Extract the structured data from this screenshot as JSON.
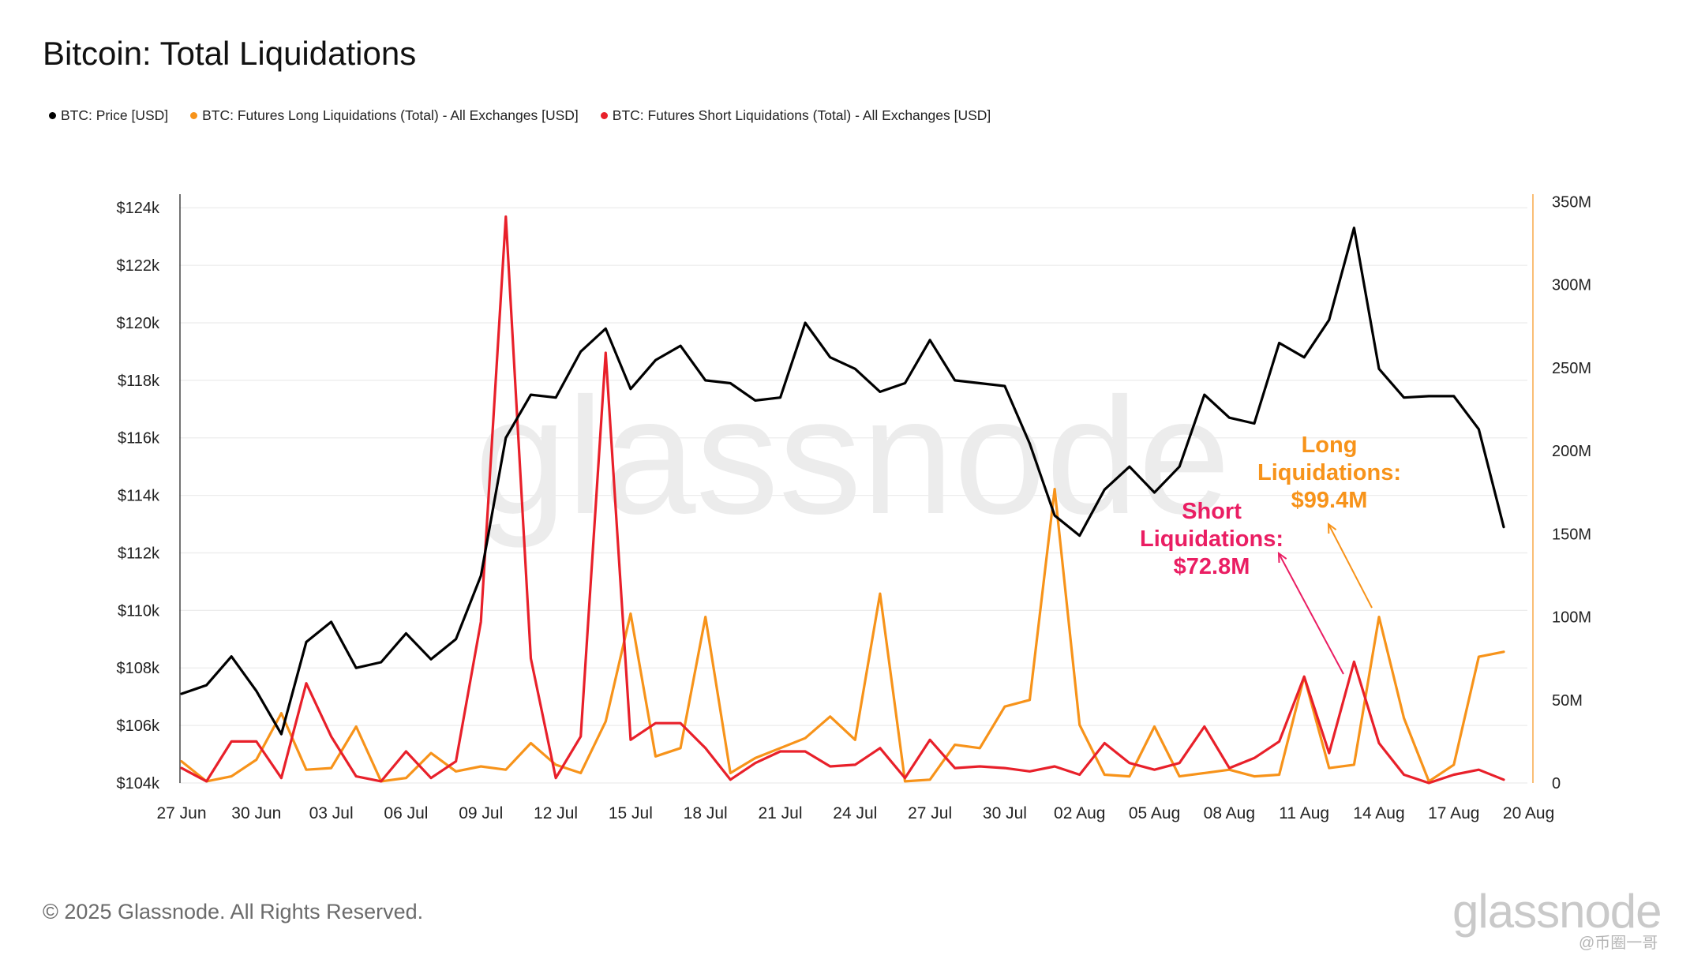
{
  "title": "Bitcoin: Total Liquidations",
  "legend": [
    {
      "label": "BTC: Price [USD]",
      "color": "#000000"
    },
    {
      "label": "BTC: Futures Long Liquidations (Total) - All Exchanges [USD]",
      "color": "#f7931a"
    },
    {
      "label": "BTC: Futures Short Liquidations (Total) - All Exchanges [USD]",
      "color": "#e8202a"
    }
  ],
  "footer": "© 2025 Glassnode. All Rights Reserved.",
  "logo": "glassnode",
  "watermark_corner": "@币圈一哥",
  "chart_data": {
    "type": "line",
    "title": "Bitcoin: Total Liquidations",
    "x_tick_labels": [
      "27 Jun",
      "30 Jun",
      "03 Jul",
      "06 Jul",
      "09 Jul",
      "12 Jul",
      "15 Jul",
      "18 Jul",
      "21 Jul",
      "24 Jul",
      "27 Jul",
      "30 Jul",
      "02 Aug",
      "05 Aug",
      "08 Aug",
      "11 Aug",
      "14 Aug",
      "17 Aug",
      "20 Aug"
    ],
    "x_range": [
      "2025-06-27",
      "2025-08-20"
    ],
    "y_left": {
      "ticks": [
        "$104k",
        "$106k",
        "$108k",
        "$110k",
        "$112k",
        "$114k",
        "$116k",
        "$118k",
        "$120k",
        "$122k",
        "$124k"
      ],
      "range": [
        104000,
        124500
      ]
    },
    "y_right": {
      "ticks": [
        "0",
        "50M",
        "100M",
        "150M",
        "200M",
        "250M",
        "300M",
        "350M"
      ],
      "range": [
        0,
        355
      ]
    },
    "grid": "horizontal",
    "legend_position": "top-left",
    "series": [
      {
        "name": "BTC: Price [USD]",
        "axis": "left",
        "color": "#000000",
        "values": [
          107100,
          107400,
          108400,
          107200,
          105700,
          108900,
          109600,
          108000,
          108200,
          109200,
          108300,
          109000,
          111200,
          116000,
          117500,
          117400,
          119000,
          119800,
          117700,
          118700,
          119200,
          118000,
          117900,
          117300,
          117400,
          120000,
          118800,
          118400,
          117600,
          117900,
          119400,
          118000,
          117900,
          117800,
          115800,
          113300,
          112600,
          114200,
          115000,
          114100,
          115000,
          117500,
          116700,
          116500,
          119300,
          118800,
          120100,
          123300,
          118400,
          117400,
          117450,
          117450,
          116300,
          112900
        ]
      },
      {
        "name": "BTC: Futures Long Liquidations (Total) - All Exchanges [USD]",
        "axis": "right",
        "color": "#f7931a",
        "values": [
          13,
          1,
          4,
          14,
          42,
          8,
          9,
          34,
          1,
          3,
          18,
          7,
          10,
          8,
          24,
          11,
          6,
          37,
          102,
          16,
          21,
          100,
          6,
          15,
          21,
          27,
          40,
          26,
          114,
          1,
          2,
          23,
          21,
          46,
          50,
          177,
          35,
          5,
          4,
          34,
          4,
          6,
          8,
          4,
          5,
          64,
          9,
          11,
          100,
          39,
          1,
          11,
          76,
          79
        ]
      },
      {
        "name": "BTC: Futures Short Liquidations (Total) - All Exchanges [USD]",
        "axis": "right",
        "color": "#e8202a",
        "values": [
          9,
          1,
          25,
          25,
          3,
          60,
          28,
          4,
          1,
          19,
          3,
          13,
          97,
          341,
          75,
          3,
          28,
          259,
          26,
          36,
          36,
          21,
          2,
          12,
          19,
          19,
          10,
          11,
          21,
          3,
          26,
          9,
          10,
          9,
          7,
          10,
          5,
          24,
          12,
          8,
          12,
          34,
          9,
          15,
          25,
          64,
          18,
          73,
          24,
          5,
          0,
          5,
          8,
          2
        ]
      }
    ],
    "annotations": [
      {
        "label": "Short Liquidations:",
        "value": "$72.8M",
        "color": "#ea1e63"
      },
      {
        "label": "Long Liquidations:",
        "value": "$99.4M",
        "color": "#f7931a"
      }
    ]
  }
}
